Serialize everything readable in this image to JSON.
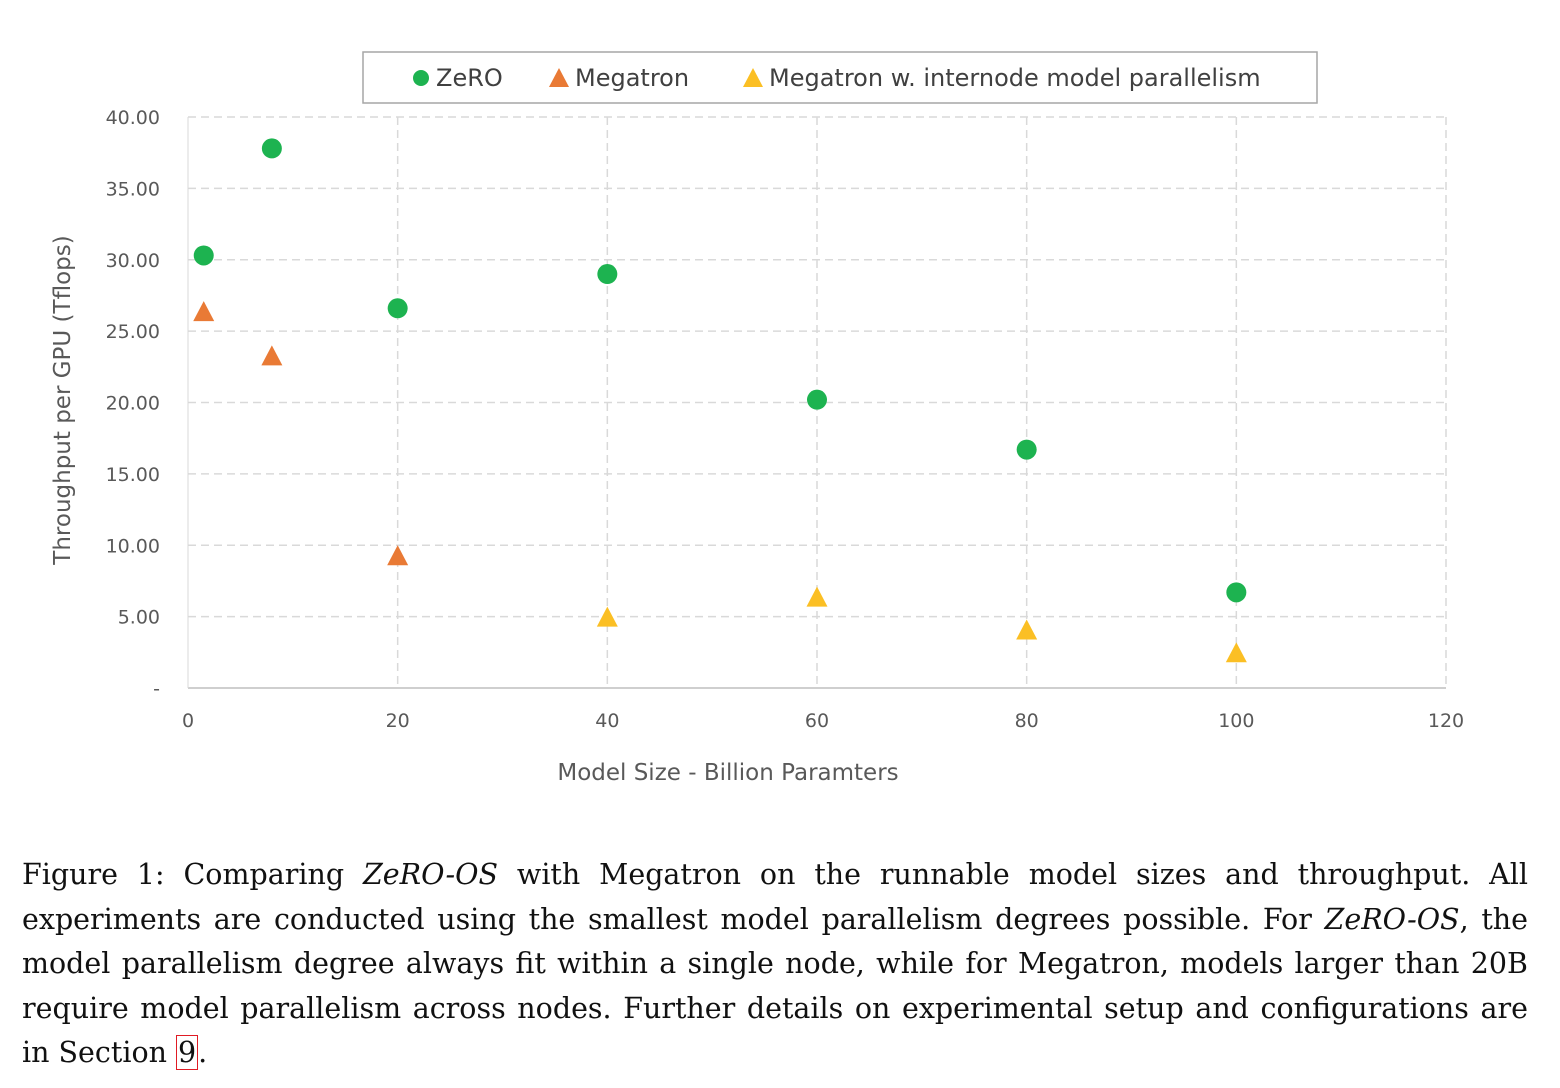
{
  "chart_data": {
    "type": "scatter",
    "xlabel": "Model Size - Billion Paramters",
    "ylabel": "Throughput per GPU (Tflops)",
    "xlim": [
      0,
      120
    ],
    "ylim": [
      0,
      40
    ],
    "x_ticks": [
      "0",
      "20",
      "40",
      "60",
      "80",
      "100",
      "120"
    ],
    "y_ticks": [
      "-",
      "5.00",
      "10.00",
      "15.00",
      "20.00",
      "25.00",
      "30.00",
      "35.00",
      "40.00"
    ],
    "grid": true,
    "legend_position": "top",
    "series": [
      {
        "name": "ZeRO",
        "marker": "circle",
        "color": "#1db350",
        "points": [
          [
            1.5,
            30.3
          ],
          [
            8,
            37.8
          ],
          [
            20,
            26.6
          ],
          [
            40,
            29.0
          ],
          [
            60,
            20.2
          ],
          [
            80,
            16.7
          ],
          [
            100,
            6.7
          ]
        ]
      },
      {
        "name": "Megatron",
        "marker": "triangle",
        "color": "#e97a35",
        "points": [
          [
            1.5,
            26.3
          ],
          [
            8,
            23.2
          ],
          [
            20,
            9.2
          ]
        ]
      },
      {
        "name": "Megatron w. internode model parallelism",
        "marker": "triangle",
        "color": "#fbbf24",
        "points": [
          [
            40,
            4.9
          ],
          [
            60,
            6.3
          ],
          [
            80,
            4.0
          ],
          [
            100,
            2.4
          ]
        ]
      }
    ]
  },
  "caption": {
    "prefix": "Figure 1: Comparing ",
    "zero_os_1": "ZeRO-OS",
    "text_1": " with Megatron on the runnable model sizes and throughput. All experiments are conducted using the smallest model parallelism degrees possible. For ",
    "zero_os_2": "ZeRO-OS",
    "text_2": ", the model parallelism degree always fit within a single node, while for Megatron, models larger than 20B require model parallelism across nodes. Further details on experimental setup and configurations are in Section ",
    "section_ref": "9",
    "suffix": "."
  }
}
